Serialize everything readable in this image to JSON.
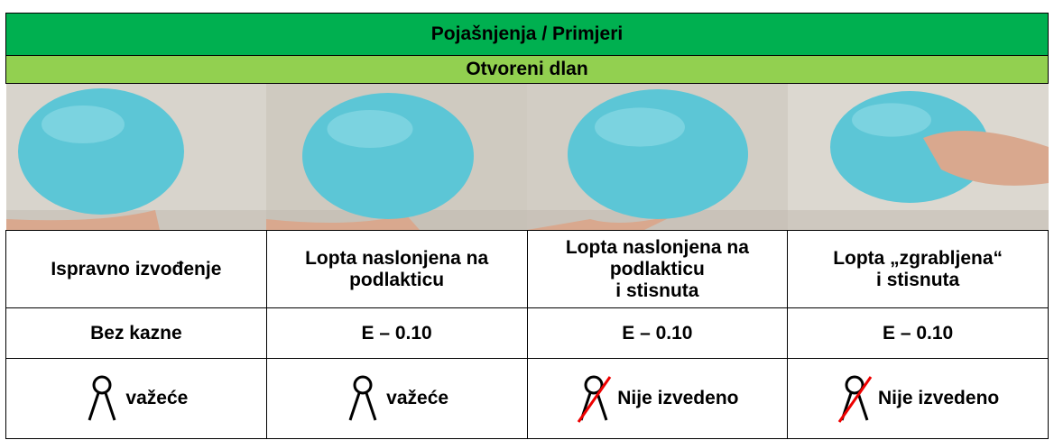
{
  "header": {
    "title": "Pojašnjenja / Primjeri",
    "subtitle": "Otvoreni dlan"
  },
  "columns": [
    {
      "description": [
        "Ispravno izvođenje"
      ],
      "penalty": "Bez kazne",
      "status": "važeće"
    },
    {
      "description": [
        "Lopta naslonjena na",
        "podlakticu"
      ],
      "penalty": "E – 0.10",
      "status": "važeće"
    },
    {
      "description": [
        "Lopta naslonjena na",
        "podlakticu",
        "i stisnuta"
      ],
      "penalty": "E – 0.10",
      "status": "Nije izvedeno"
    },
    {
      "description": [
        "Lopta „zgrabljena“",
        "i stisnuta"
      ],
      "penalty": "E – 0.10",
      "status": "Nije izvedeno"
    }
  ]
}
